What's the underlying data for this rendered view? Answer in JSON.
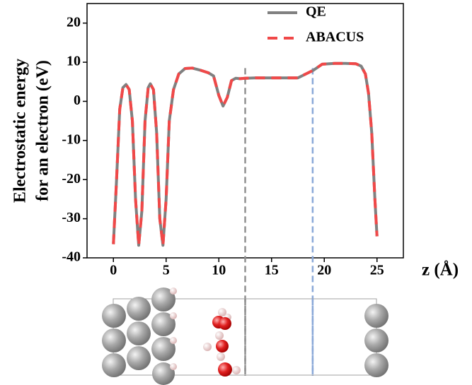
{
  "chart_data": {
    "type": "line",
    "ylabel": [
      "Electrostatic energy",
      "for an electron (eV)"
    ],
    "xlabel": "z (Å)",
    "x": [
      0,
      0.3,
      0.6,
      0.9,
      1.2,
      1.5,
      1.8,
      2.1,
      2.4,
      2.7,
      3.0,
      3.3,
      3.5,
      3.8,
      4.1,
      4.4,
      4.7,
      5.0,
      5.3,
      5.7,
      6.2,
      6.8,
      7.5,
      8.2,
      9.0,
      9.5,
      10.0,
      10.4,
      10.8,
      11.2,
      11.6,
      12.0,
      12.5,
      13.5,
      15,
      17.5,
      19,
      19.8,
      21,
      22,
      23,
      23.5,
      23.9,
      24.2,
      24.5,
      24.8,
      25
    ],
    "series": [
      {
        "name": "QE",
        "color": "#808080",
        "dash": false,
        "values": [
          -36.5,
          -20,
          -2,
          3.5,
          4.3,
          3,
          -5,
          -25,
          -36.8,
          -28,
          -5,
          3.5,
          4.5,
          3,
          -8,
          -30,
          -36.8,
          -25,
          -5,
          3,
          7,
          8.4,
          8.5,
          8,
          7.3,
          6.5,
          1.5,
          -1.2,
          1,
          5.3,
          5.9,
          5.8,
          5.9,
          6,
          6,
          6,
          8,
          9.5,
          9.7,
          9.7,
          9.6,
          9,
          7,
          2,
          -8,
          -25,
          -34.5
        ]
      },
      {
        "name": "ABACUS",
        "color": "#f04848",
        "dash": true,
        "values": [
          -36.5,
          -20,
          -2,
          3.5,
          4.3,
          3,
          -5,
          -25,
          -36.8,
          -28,
          -5,
          3.5,
          4.5,
          3,
          -8,
          -30,
          -36.8,
          -25,
          -5,
          3,
          7,
          8.4,
          8.5,
          8,
          7.3,
          6.5,
          1.5,
          -1.2,
          1,
          5.3,
          5.9,
          5.8,
          5.9,
          6,
          6,
          6,
          8,
          9.5,
          9.7,
          9.7,
          9.6,
          9,
          7,
          2,
          -8,
          -25,
          -34.5
        ]
      }
    ],
    "xlim": [
      -2.5,
      27.5
    ],
    "xticks": [
      0,
      5,
      10,
      15,
      20,
      25
    ],
    "ylim": [
      -40,
      25
    ],
    "yticks": [
      -40,
      -30,
      -20,
      -10,
      0,
      10,
      20
    ],
    "legend": "upper right",
    "vlines": [
      {
        "x": 12.5,
        "color": "#909090"
      },
      {
        "x": 18.9,
        "color": "#8aa8d8"
      }
    ]
  }
}
